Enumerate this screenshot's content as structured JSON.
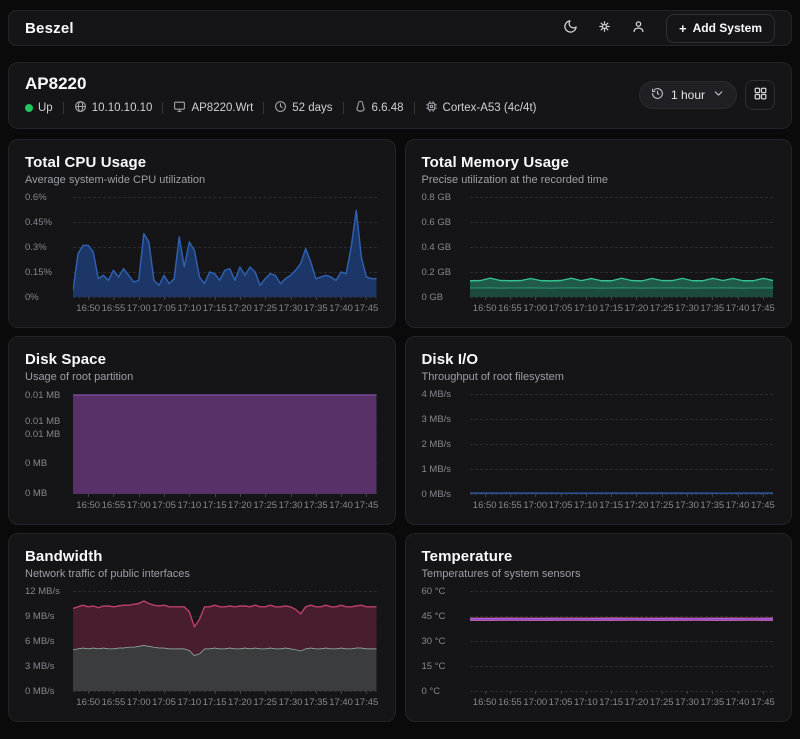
{
  "navbar": {
    "brand": "Beszel",
    "add_system": {
      "plus": "+",
      "label": "Add System"
    }
  },
  "icons": {
    "theme": "moon-icon",
    "settings": "gear-icon",
    "user": "user-icon",
    "ip": "globe-icon",
    "hostname": "monitor-icon",
    "uptime": "clock-icon",
    "kernel": "tux-icon",
    "cpu": "chip-icon",
    "range": "history-icon",
    "range_chevron": "chevron-down-icon",
    "layout": "grid-icon"
  },
  "system": {
    "name": "AP8220",
    "status": "Up",
    "ip": "10.10.10.10",
    "hostname": "AP8220.Wrt",
    "uptime": "52 days",
    "kernel": "6.6.48",
    "cpu_model": "Cortex-A53 (4c/4t)",
    "time_range": "1 hour"
  },
  "colors": {
    "page_bg": "#0a0a0b",
    "card_bg": "#151518",
    "border": "#232329",
    "status_up": "#22c55e",
    "cpu_blue": "#2f5fae",
    "memory_green": "#32c193",
    "disk_purple": "#583168",
    "bandwidth_red": "#bb4067",
    "bandwidth_gray": "#9cbcac",
    "temperature_purple": "#a963e0"
  },
  "x_ticks": [
    "16:50",
    "16:55",
    "17:00",
    "17:05",
    "17:10",
    "17:15",
    "17:20",
    "17:25",
    "17:30",
    "17:35",
    "17:40",
    "17:45"
  ],
  "x_tick_pos": [
    0.05,
    0.1333,
    0.2167,
    0.3,
    0.3833,
    0.4667,
    0.55,
    0.6333,
    0.7167,
    0.8,
    0.8833,
    0.9667
  ],
  "chart_data": [
    {
      "type": "area",
      "stacked": false,
      "title": "Total CPU Usage",
      "subtitle": "Average system-wide CPU utilization",
      "ymax": 0.6,
      "y_ticks": [
        {
          "label": "0.6%",
          "pos": 0
        },
        {
          "label": "0.45%",
          "pos": 0.25
        },
        {
          "label": "0.3%",
          "pos": 0.5
        },
        {
          "label": "0.15%",
          "pos": 0.75
        },
        {
          "label": "0%",
          "pos": 1
        }
      ],
      "series": [
        {
          "id": "cpu",
          "line": "#2f5fae",
          "fill": "#1c3767",
          "width": 1.5,
          "values": [
            0.04,
            0.26,
            0.31,
            0.31,
            0.27,
            0.11,
            0.13,
            0.1,
            0.16,
            0.12,
            0.17,
            0.13,
            0.09,
            0.1,
            0.38,
            0.33,
            0.1,
            0.07,
            0.13,
            0.08,
            0.11,
            0.36,
            0.18,
            0.33,
            0.28,
            0.12,
            0.08,
            0.15,
            0.14,
            0.1,
            0.16,
            0.17,
            0.1,
            0.18,
            0.13,
            0.18,
            0.15,
            0.07,
            0.11,
            0.14,
            0.13,
            0.08,
            0.11,
            0.13,
            0.16,
            0.2,
            0.29,
            0.21,
            0.11,
            0.12,
            0.13,
            0.12,
            0.1,
            0.15,
            0.14,
            0.3,
            0.52,
            0.24,
            0.12,
            0.11,
            0.11
          ]
        }
      ]
    },
    {
      "type": "area",
      "stacked": true,
      "title": "Total Memory Usage",
      "subtitle": "Precise utilization at the recorded time",
      "ymax": 0.8,
      "y_ticks": [
        {
          "label": "0.8 GB",
          "pos": 0
        },
        {
          "label": "0.6 GB",
          "pos": 0.25
        },
        {
          "label": "0.4 GB",
          "pos": 0.5
        },
        {
          "label": "0.2 GB",
          "pos": 0.75
        },
        {
          "label": "0 GB",
          "pos": 1
        }
      ],
      "series": [
        {
          "id": "mem-used",
          "line": "#2fae85",
          "fill": "#1c4a3d",
          "width": 1.4,
          "values": [
            0.075,
            0.075,
            0.076,
            0.074,
            0.075,
            0.075,
            0.076,
            0.075,
            0.074,
            0.075,
            0.076,
            0.075,
            0.075,
            0.074,
            0.075,
            0.076,
            0.075,
            0.074,
            0.075,
            0.075,
            0.076,
            0.075,
            0.074,
            0.075,
            0.075,
            0.076,
            0.075,
            0.074,
            0.075,
            0.075,
            0.075
          ]
        },
        {
          "id": "mem-cache",
          "line": "#37c294",
          "fill": "#205a4b",
          "width": 1.4,
          "values": [
            0.055,
            0.056,
            0.075,
            0.058,
            0.055,
            0.056,
            0.072,
            0.056,
            0.055,
            0.057,
            0.074,
            0.056,
            0.073,
            0.056,
            0.055,
            0.074,
            0.056,
            0.055,
            0.073,
            0.056,
            0.055,
            0.074,
            0.056,
            0.055,
            0.074,
            0.056,
            0.073,
            0.056,
            0.055,
            0.074,
            0.056
          ]
        }
      ]
    },
    {
      "type": "area",
      "stacked": false,
      "title": "Disk Space",
      "subtitle": "Usage of root partition",
      "ymax": 1,
      "y_ticks": [
        {
          "label": "0.01 MB",
          "pos": 0.01
        },
        {
          "label": "0.01 MB",
          "pos": 0.27
        },
        {
          "label": "0.01 MB",
          "pos": 0.4
        },
        {
          "label": "0 MB",
          "pos": 0.69
        },
        {
          "label": "0 MB",
          "pos": 0.99
        }
      ],
      "series": [
        {
          "id": "disk-used",
          "line": "#7a4898",
          "fill": "#583168",
          "width": 1.4,
          "values": [
            0.99,
            0.99,
            0.99,
            0.99
          ]
        }
      ]
    },
    {
      "type": "line",
      "stacked": false,
      "title": "Disk I/O",
      "subtitle": "Throughput of root filesystem",
      "ymax": 4,
      "y_ticks": [
        {
          "label": "4 MB/s",
          "pos": 0
        },
        {
          "label": "3 MB/s",
          "pos": 0.25
        },
        {
          "label": "2 MB/s",
          "pos": 0.5
        },
        {
          "label": "1 MB/s",
          "pos": 0.75
        },
        {
          "label": "0 MB/s",
          "pos": 1
        }
      ],
      "series": [
        {
          "id": "disk-read",
          "line": "#2f5fae",
          "fill": null,
          "width": 1.4,
          "values": [
            0.035,
            0.035,
            0.034,
            0.035,
            0.035,
            0.034,
            0.035
          ]
        },
        {
          "id": "disk-write",
          "line": "#2a4f93",
          "fill": null,
          "width": 1.2,
          "values": [
            0.02,
            0.02,
            0.02,
            0.02,
            0.02,
            0.02,
            0.02
          ]
        }
      ]
    },
    {
      "type": "area",
      "stacked": true,
      "title": "Bandwidth",
      "subtitle": "Network traffic of public interfaces",
      "ymax": 12,
      "y_ticks": [
        {
          "label": "12 MB/s",
          "pos": 0
        },
        {
          "label": "9 MB/s",
          "pos": 0.25
        },
        {
          "label": "6 MB/s",
          "pos": 0.5
        },
        {
          "label": "3 MB/s",
          "pos": 0.75
        },
        {
          "label": "0 MB/s",
          "pos": 1
        }
      ],
      "series": [
        {
          "id": "received",
          "line": "#9cbcac",
          "fill": "#3a3c3e",
          "width": 1.4,
          "values": [
            5.0,
            5.1,
            5.2,
            5.1,
            5.2,
            5.1,
            5.2,
            5.1,
            5.1,
            5.2,
            5.2,
            5.3,
            5.3,
            5.4,
            5.5,
            5.4,
            5.3,
            5.2,
            5.2,
            5.1,
            5.1,
            5.1,
            5.1,
            4.9,
            4.3,
            4.5,
            5.1,
            5.1,
            5.2,
            5.1,
            5.1,
            5.2,
            5.1,
            5.1,
            5.2,
            5.1,
            5.2,
            5.1,
            5.1,
            5.2,
            5.1,
            5.1,
            5.2,
            5.1,
            5.0,
            4.85,
            5.1,
            5.2,
            5.1,
            5.1,
            5.2,
            5.1,
            5.1,
            5.2,
            5.1,
            5.1,
            5.2,
            5.2,
            5.1,
            5.1,
            5.1
          ]
        },
        {
          "id": "sent",
          "line": "#bb4067",
          "fill": "#491d30",
          "width": 1.4,
          "values": [
            4.9,
            5.0,
            5.1,
            5.0,
            5.0,
            4.9,
            5.0,
            5.1,
            5.0,
            5.0,
            5.1,
            5.0,
            5.1,
            5.1,
            5.3,
            5.1,
            5.0,
            5.0,
            5.1,
            5.0,
            5.0,
            5.0,
            5.0,
            4.6,
            3.4,
            4.1,
            5.0,
            5.0,
            5.1,
            5.0,
            5.0,
            5.0,
            5.0,
            5.1,
            5.0,
            5.0,
            5.1,
            5.0,
            5.0,
            5.1,
            5.0,
            5.0,
            5.0,
            5.0,
            4.8,
            4.4,
            5.0,
            5.1,
            5.0,
            5.0,
            5.1,
            5.0,
            5.0,
            5.1,
            5.0,
            5.0,
            5.0,
            5.1,
            5.0,
            5.0,
            5.0
          ]
        }
      ]
    },
    {
      "type": "line",
      "stacked": false,
      "title": "Temperature",
      "subtitle": "Temperatures of system sensors",
      "ymax": 60,
      "y_ticks": [
        {
          "label": "60 °C",
          "pos": 0
        },
        {
          "label": "45 °C",
          "pos": 0.25
        },
        {
          "label": "30 °C",
          "pos": 0.5
        },
        {
          "label": "15 °C",
          "pos": 0.75
        },
        {
          "label": "0 °C",
          "pos": 1
        }
      ],
      "series": [
        {
          "id": "sensor-1",
          "line": "#9c4444",
          "fill": null,
          "width": 1.2,
          "values": [
            43.8,
            43.8,
            43.9,
            43.8,
            43.8,
            43.9,
            43.8,
            44.0,
            43.9,
            43.8,
            43.9,
            43.8,
            43.8,
            43.9,
            43.8,
            43.9
          ]
        },
        {
          "id": "sensor-2",
          "line": "#a963e0",
          "fill": null,
          "width": 2,
          "values": [
            43.2,
            43.2,
            43.3,
            43.2,
            43.3,
            43.2,
            43.2,
            43.3,
            43.2,
            43.2,
            43.3,
            43.2,
            43.3,
            43.2,
            43.2,
            43.3
          ]
        },
        {
          "id": "sensor-3",
          "line": "#7e43b8",
          "fill": null,
          "width": 1.4,
          "values": [
            42.8,
            42.8,
            42.9,
            42.8,
            42.8,
            42.9,
            42.8,
            42.8,
            42.9,
            42.8,
            42.8,
            42.9,
            42.8,
            42.8,
            42.9,
            42.8
          ]
        },
        {
          "id": "sensor-4",
          "line": "#d565c8",
          "fill": null,
          "width": 1.2,
          "values": [
            42.4,
            42.4,
            42.5,
            42.4,
            42.4,
            42.5,
            42.4,
            42.4,
            42.5,
            42.4,
            42.4,
            42.5,
            42.4,
            42.4,
            42.5,
            42.4
          ]
        }
      ]
    }
  ]
}
